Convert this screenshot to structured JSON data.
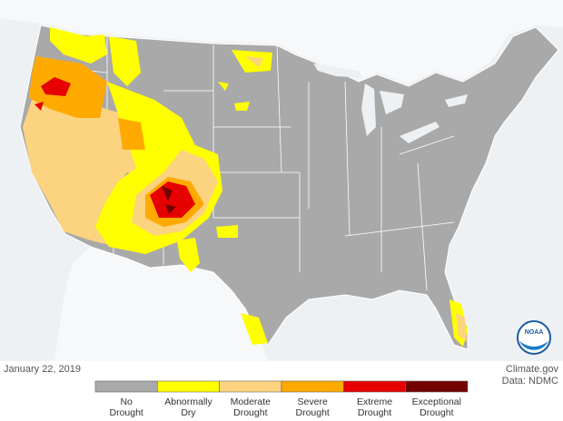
{
  "date": "January 22, 2019",
  "credit": {
    "source": "Climate.gov",
    "data": "Data: NDMC"
  },
  "logo": "NOAA",
  "legend": [
    {
      "label": "No Drought",
      "color": "#a9a9a9"
    },
    {
      "label": "Abnormally Dry",
      "color": "#ffff00"
    },
    {
      "label": "Moderate Drought",
      "color": "#fcd37f"
    },
    {
      "label": "Severe Drought",
      "color": "#ffaa00"
    },
    {
      "label": "Extreme Drought",
      "color": "#e60000"
    },
    {
      "label": "Exceptional Drought",
      "color": "#730000"
    }
  ]
}
